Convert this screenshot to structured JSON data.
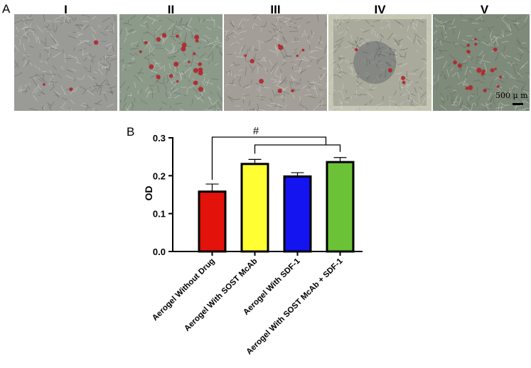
{
  "panel_a": {
    "letter": "A",
    "images": [
      {
        "label": "I",
        "tint": "#9a9a96",
        "dots": 3
      },
      {
        "label": "II",
        "tint": "#8c9a8a",
        "dots": 22
      },
      {
        "label": "III",
        "tint": "#a39e98",
        "dots": 9
      },
      {
        "label": "IV",
        "tint": "#a9aa9c",
        "dots": 4
      },
      {
        "label": "V",
        "tint": "#7e8a7a",
        "dots": 18
      }
    ],
    "scale_bar_text": "500 μ m"
  },
  "panel_b": {
    "letter": "B",
    "significance_symbol": "#"
  },
  "chart_data": {
    "type": "bar",
    "categories": [
      "Aerogel Without Drug",
      "Aerogel With SOST McAb",
      "Aerogel With SDF-1",
      "Aerogel With SOST McAb + SDF-1"
    ],
    "values": [
      0.158,
      0.231,
      0.198,
      0.236
    ],
    "errors": [
      0.02,
      0.012,
      0.01,
      0.012
    ],
    "colors": [
      "#e3120b",
      "#ffff33",
      "#1414f0",
      "#6cc236"
    ],
    "ylabel": "OD",
    "ylim": [
      0,
      0.3
    ],
    "yticks": [
      "0.0",
      "0.1",
      "0.2",
      "0.3"
    ],
    "grid": false
  }
}
